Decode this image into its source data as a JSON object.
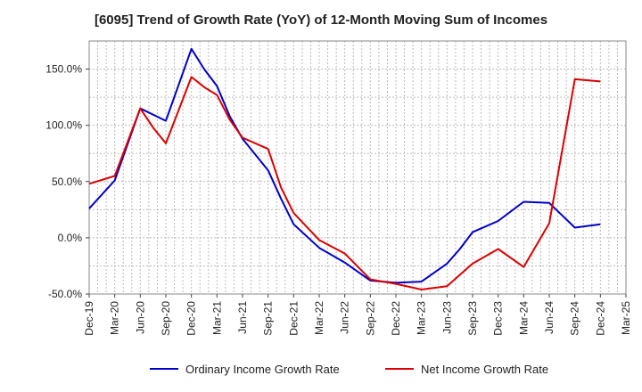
{
  "chart_data": {
    "type": "line",
    "title": "[6095]  Trend of Growth Rate (YoY) of 12-Month Moving Sum of Incomes",
    "ylim": [
      -50,
      175
    ],
    "yticks": [
      {
        "value": 150,
        "label": "150.0%"
      },
      {
        "value": 100,
        "label": "100.0%"
      },
      {
        "value": 50,
        "label": "50.0%"
      },
      {
        "value": 0,
        "label": "0.0%"
      },
      {
        "value": -50,
        "label": "-50.0%"
      }
    ],
    "categories": [
      "Dec-19",
      "Mar-20",
      "Jun-20",
      "Sep-20",
      "Dec-20",
      "Mar-21",
      "Jun-21",
      "Sep-21",
      "Dec-21",
      "Mar-22",
      "Jun-22",
      "Sep-22",
      "Dec-22",
      "Mar-23",
      "Jun-23",
      "Sep-23",
      "Dec-23",
      "Mar-24",
      "Jun-24",
      "Sep-24",
      "Dec-24",
      "Mar-25"
    ],
    "x_quarter_index": [
      0,
      0.5,
      1,
      2,
      2.5,
      3,
      4,
      4.5,
      5,
      5.5,
      6,
      6.5,
      7,
      8,
      8.5,
      9,
      10,
      11,
      12,
      13,
      13.5,
      14,
      14.5,
      15,
      16,
      17,
      18,
      19,
      20
    ],
    "series": [
      {
        "name": "Ordinary Income Growth Rate",
        "color": "#0000cc",
        "points": [
          [
            0,
            26
          ],
          [
            1,
            51
          ],
          [
            2,
            115
          ],
          [
            3,
            104
          ],
          [
            4,
            168
          ],
          [
            4.5,
            150
          ],
          [
            5,
            135
          ],
          [
            5.5,
            108
          ],
          [
            6,
            88
          ],
          [
            7,
            60
          ],
          [
            7.5,
            35
          ],
          [
            8,
            12
          ],
          [
            9,
            -9
          ],
          [
            10,
            -22
          ],
          [
            11,
            -38
          ],
          [
            12,
            -40
          ],
          [
            13,
            -39
          ],
          [
            14,
            -23
          ],
          [
            14.5,
            -10
          ],
          [
            15,
            5
          ],
          [
            16,
            15
          ],
          [
            17,
            32
          ],
          [
            18,
            31
          ],
          [
            19,
            9
          ],
          [
            20,
            12
          ]
        ]
      },
      {
        "name": "Net Income Growth Rate",
        "color": "#dd0000",
        "points": [
          [
            0,
            48
          ],
          [
            1,
            55
          ],
          [
            2,
            115
          ],
          [
            2.5,
            98
          ],
          [
            3,
            84
          ],
          [
            4,
            143
          ],
          [
            4.5,
            134
          ],
          [
            5,
            127
          ],
          [
            5.5,
            105
          ],
          [
            6,
            89
          ],
          [
            7,
            79
          ],
          [
            7.5,
            45
          ],
          [
            8,
            22
          ],
          [
            9,
            -2
          ],
          [
            10,
            -14
          ],
          [
            11,
            -37
          ],
          [
            12,
            -41
          ],
          [
            13,
            -46
          ],
          [
            14,
            -43
          ],
          [
            15,
            -23
          ],
          [
            16,
            -10
          ],
          [
            17,
            -26
          ],
          [
            18,
            13
          ],
          [
            19,
            141
          ],
          [
            20,
            139
          ]
        ]
      }
    ],
    "legend_position": "bottom",
    "grid": true
  }
}
